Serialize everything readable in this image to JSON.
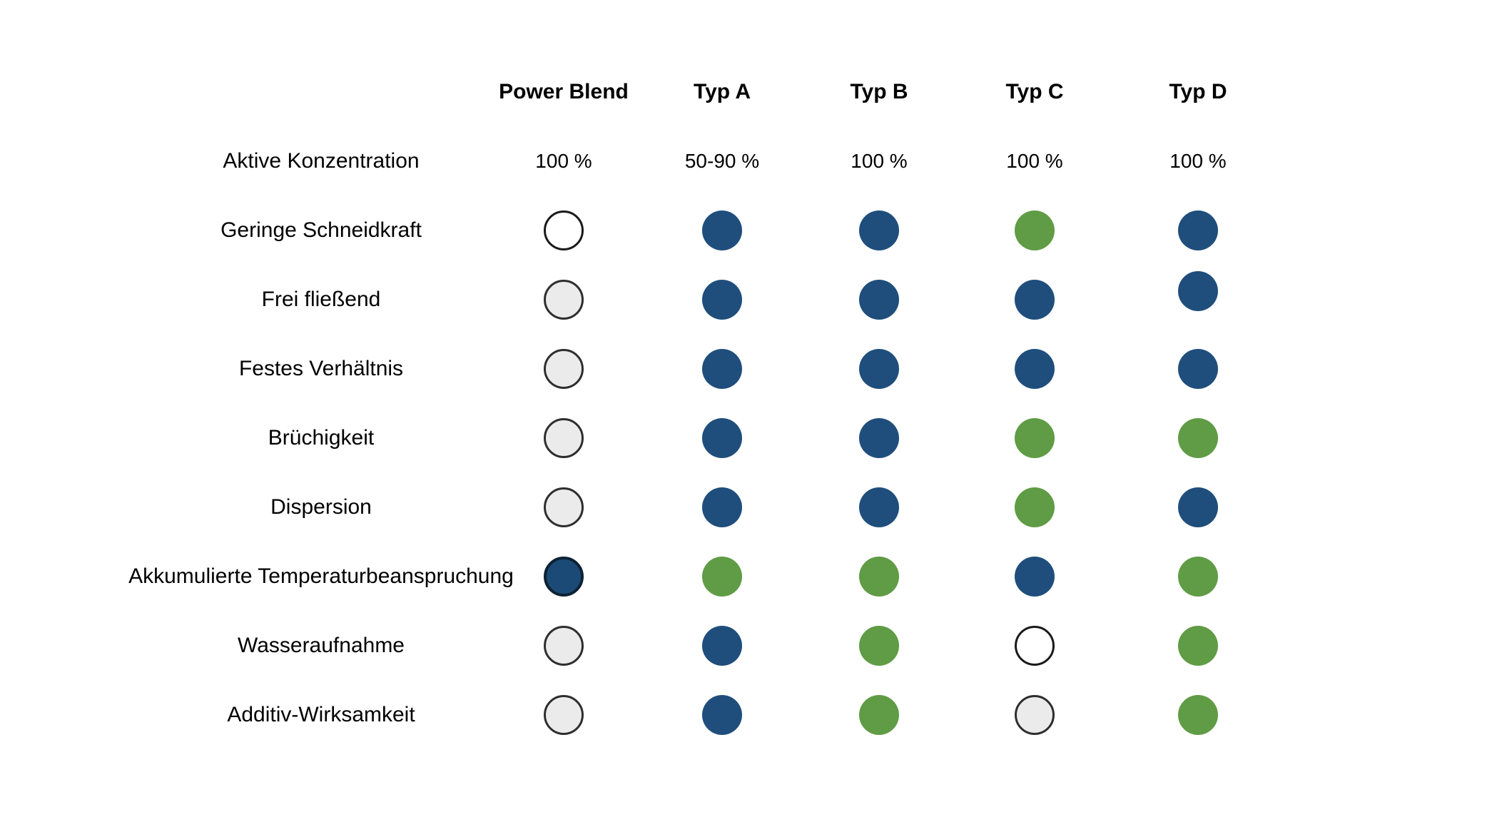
{
  "slide": {
    "background": "#FFFFFF"
  },
  "chart_data": {
    "type": "table",
    "title": "",
    "columns": [
      "Power Blend",
      "Typ A",
      "Typ B",
      "Typ C",
      "Typ D"
    ],
    "rows": [
      {
        "label": "Aktive Konzentration",
        "cell_type": "text",
        "values": [
          "100 %",
          "50-90 %",
          "100 %",
          "100 %",
          "100 %"
        ]
      },
      {
        "label": "Geringe Schneidkraft",
        "cell_type": "dot",
        "values": [
          "white",
          "blue",
          "blue",
          "green",
          "blue"
        ]
      },
      {
        "label": "Frei fließend",
        "cell_type": "dot",
        "values": [
          "gray",
          "blue",
          "blue",
          "blue",
          "blue"
        ]
      },
      {
        "label": "Festes Verhältnis",
        "cell_type": "dot",
        "values": [
          "gray",
          "blue",
          "blue",
          "blue",
          "blue"
        ]
      },
      {
        "label": "Brüchigkeit",
        "cell_type": "dot",
        "values": [
          "gray",
          "blue",
          "blue",
          "green",
          "green"
        ]
      },
      {
        "label": "Dispersion",
        "cell_type": "dot",
        "values": [
          "gray",
          "blue",
          "blue",
          "green",
          "blue"
        ]
      },
      {
        "label": "Akkumulierte Temperaturbeanspruchung",
        "cell_type": "dot",
        "values": [
          "darkblue",
          "green",
          "green",
          "blue",
          "green"
        ]
      },
      {
        "label": "Wasseraufnahme",
        "cell_type": "dot",
        "values": [
          "gray",
          "blue",
          "green",
          "white",
          "green"
        ]
      },
      {
        "label": "Additiv-Wirksamkeit",
        "cell_type": "dot",
        "values": [
          "gray",
          "blue",
          "green",
          "gray",
          "green"
        ]
      }
    ],
    "dot_colors": {
      "blue": "#1F4E7C",
      "green": "#5F9C45",
      "gray": "#EBEBEB",
      "white": "#FFFFFF",
      "darkblue": "#1C4A76"
    },
    "dot_borders": {
      "gray": "3px solid #2E2E2E",
      "white": "3px solid #1A1A1A",
      "darkblue": "4px solid #0D2233"
    },
    "grid": false,
    "legend_position": "none"
  }
}
